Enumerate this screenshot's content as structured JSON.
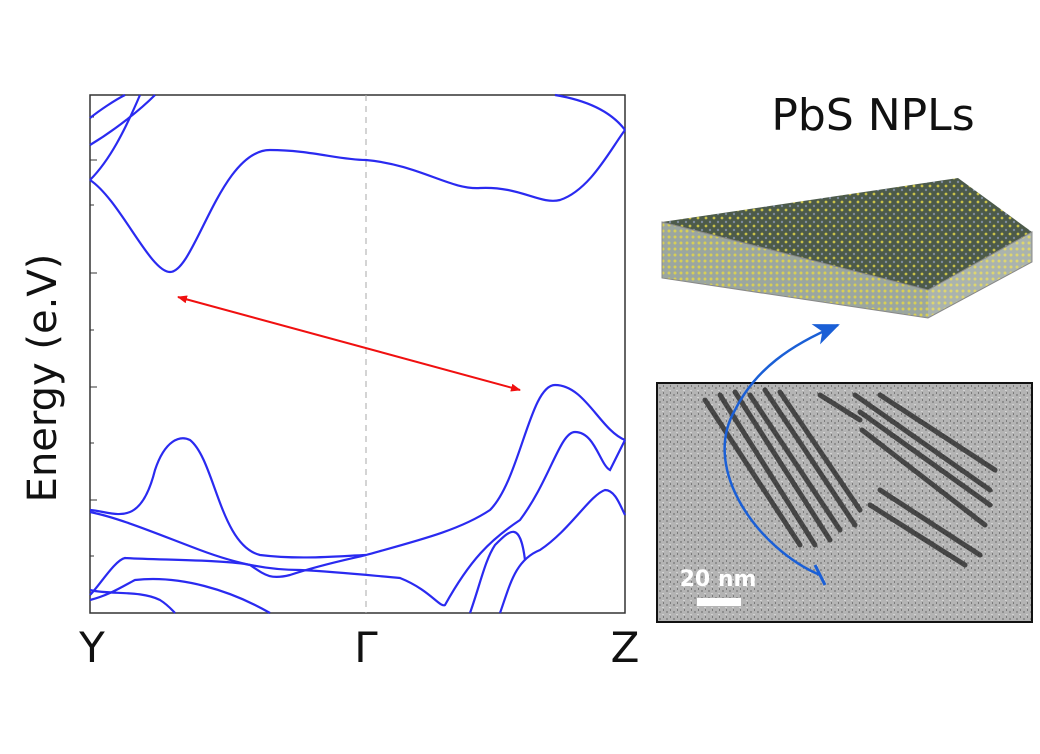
{
  "plot": {
    "y_axis_label": "Energy (e.V)",
    "x_labels": [
      "Y",
      "Γ",
      "Z"
    ]
  },
  "inset": {
    "title": "PbS NPLs",
    "scale_bar": "20 nm"
  }
}
